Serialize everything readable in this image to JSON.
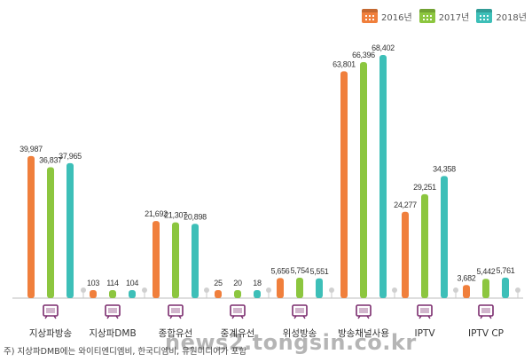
{
  "legend": [
    {
      "label": "2016년",
      "color": "#F07F3C"
    },
    {
      "label": "2017년",
      "color": "#8CC63F"
    },
    {
      "label": "2018년",
      "color": "#3DBFB8"
    }
  ],
  "footnote": "주) 지상파DMB에는 와이티엔디엠비, 한국디엠비, 유원미디어가 포함",
  "watermark": "news2.tongsin.co.kr",
  "chart_data": {
    "type": "bar",
    "categories": [
      "지상파방송",
      "지상파DMB",
      "종합유선",
      "중계유선",
      "위성방송",
      "방송채널사용",
      "IPTV",
      "IPTV CP"
    ],
    "icons": [
      "tv-icon",
      "dmb-device-icon",
      "broadcast-tower-icon",
      "relay-antenna-icon",
      "satellite-icon",
      "channel-tv-icon",
      "iptv-screen-icon",
      "iptv-cp-screen-icon"
    ],
    "series": [
      {
        "name": "2016년",
        "color": "#F07F3C",
        "values": [
          39987,
          103,
          21692,
          25,
          5656,
          63801,
          24277,
          3682
        ],
        "labels": [
          "39,987",
          "103",
          "21,692",
          "25",
          "5,656",
          "63,801",
          "24,277",
          "3,682"
        ]
      },
      {
        "name": "2017년",
        "color": "#8CC63F",
        "values": [
          36837,
          114,
          21307,
          20,
          5754,
          66396,
          29251,
          5442
        ],
        "labels": [
          "36,837",
          "114",
          "21,307",
          "20",
          "5,754",
          "66,396",
          "29,251",
          "5,442"
        ]
      },
      {
        "name": "2018년",
        "color": "#3DBFB8",
        "values": [
          37965,
          104,
          20898,
          18,
          5551,
          68402,
          34358,
          5761
        ],
        "labels": [
          "37,965",
          "104",
          "20,898",
          "18",
          "5,551",
          "68,402",
          "34,358",
          "5,761"
        ]
      }
    ],
    "icon_color": "#7B2C6E",
    "grid": false,
    "legend_position": "top-right"
  }
}
